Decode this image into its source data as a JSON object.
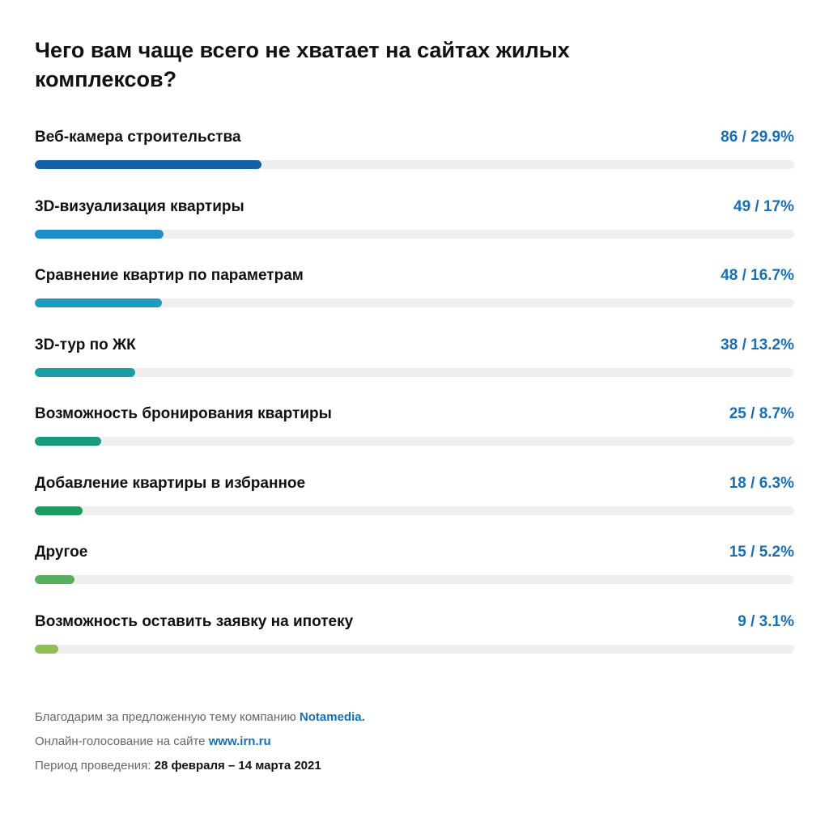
{
  "chart_data": {
    "type": "bar",
    "title": "Чего вам чаще всего не хватает на сайтах жилых комплексов?",
    "orientation": "horizontal",
    "xlim": [
      0,
      100
    ],
    "grid": false,
    "legend": "none",
    "categories": [
      "Веб-камера строительства",
      "3D-визуализация квартиры",
      "Сравнение квартир по параметрам",
      "3D-тур по ЖК",
      "Возможность бронирования квартиры",
      "Добавление квартиры в избранное",
      "Другое",
      "Возможность оставить заявку на ипотеку"
    ],
    "counts": [
      86,
      49,
      48,
      38,
      25,
      18,
      15,
      9
    ],
    "values": [
      29.9,
      17,
      16.7,
      13.2,
      8.7,
      6.3,
      5.2,
      3.1
    ],
    "value_labels": [
      "86 / 29.9%",
      "49 / 17%",
      "48 / 16.7%",
      "38 / 13.2%",
      "25 / 8.7%",
      "18 / 6.3%",
      "15 / 5.2%",
      "9 / 3.1%"
    ],
    "colors": [
      "#1361a4",
      "#1f8ec7",
      "#1d9cc0",
      "#189ea6",
      "#1a9b80",
      "#1f9a5e",
      "#58b05c",
      "#8dc04f"
    ]
  },
  "footer": {
    "line1_text": "Благодарим за предложенную тему компанию ",
    "line1_accent": "Notamedia.",
    "line2_text": "Онлайн-голосование на сайте ",
    "line2_accent": "www.irn.ru",
    "line3_text": "Период проведения: ",
    "line3_dark": "28 февраля – 14 марта 2021"
  },
  "colors": {
    "value_text": "#1a6fb0",
    "track": "#efefef"
  }
}
